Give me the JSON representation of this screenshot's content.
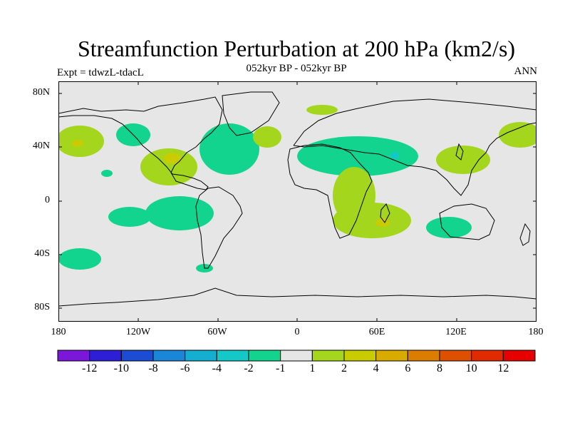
{
  "header": {
    "title": "Streamfunction Perturbation at 200 hPa (km2/s)",
    "subtitle": "052kyr BP - 052kyr BP",
    "experiment": "Expt = tdwzL-tdacL",
    "season": "ANN"
  },
  "map": {
    "y_ticks": [
      "80N",
      "40N",
      "0",
      "40S",
      "80S"
    ],
    "x_ticks": [
      "180",
      "120W",
      "60W",
      "0",
      "60E",
      "120E",
      "180"
    ],
    "lon_range": [
      -180,
      180
    ],
    "lat_range": [
      -90,
      90
    ]
  },
  "colorbar": {
    "labels": [
      "-12",
      "-10",
      "-8",
      "-6",
      "-4",
      "-2",
      "-1",
      "1",
      "2",
      "4",
      "6",
      "8",
      "10",
      "12"
    ],
    "colors": [
      "#7a17d8",
      "#2d1fd6",
      "#1c4bd4",
      "#1a86d8",
      "#13aed0",
      "#14c8c8",
      "#12d48e",
      "#e6e6e6",
      "#a3d61c",
      "#c9cc00",
      "#d9aa00",
      "#dc7c00",
      "#dc5000",
      "#e02a00",
      "#e60000"
    ]
  },
  "colors": {
    "ocean": "#e6e6e6",
    "positive_weak": "#a3d61c",
    "negative_weak": "#12d48e",
    "positive_mid": "#c9cc00",
    "positive_strong": "#d9aa00",
    "negative_mid": "#14c8c8"
  }
}
